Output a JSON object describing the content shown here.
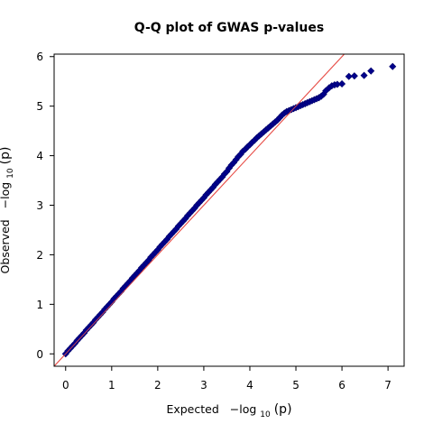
{
  "chart_data": {
    "type": "scatter",
    "title": "Q-Q plot of GWAS p-values",
    "xlabel": {
      "prefix": "Expected",
      "math": "−log",
      "sub": "10",
      "arg": "(p)"
    },
    "ylabel": {
      "prefix": "Observed",
      "math": "−log",
      "sub": "10",
      "arg": "(p)"
    },
    "xlim": [
      -0.25,
      7.35
    ],
    "ylim": [
      -0.25,
      6.05
    ],
    "xticks": [
      0,
      1,
      2,
      3,
      4,
      5,
      6,
      7
    ],
    "yticks": [
      0,
      1,
      2,
      3,
      4,
      5,
      6
    ],
    "grid": false,
    "legend": "none",
    "reference_line": {
      "slope": 1,
      "intercept": 0,
      "color": "#e8504a"
    },
    "marker": {
      "shape": "diamond",
      "fill": "#00008b",
      "stroke": "#00006a"
    },
    "series": [
      {
        "points": [
          [
            0.0,
            0.0
          ],
          [
            0.05,
            0.06
          ],
          [
            0.1,
            0.11
          ],
          [
            0.15,
            0.16
          ],
          [
            0.2,
            0.21
          ],
          [
            0.25,
            0.27
          ],
          [
            0.3,
            0.32
          ],
          [
            0.35,
            0.37
          ],
          [
            0.4,
            0.42
          ],
          [
            0.45,
            0.48
          ],
          [
            0.5,
            0.53
          ],
          [
            0.55,
            0.58
          ],
          [
            0.6,
            0.63
          ],
          [
            0.65,
            0.69
          ],
          [
            0.7,
            0.74
          ],
          [
            0.75,
            0.79
          ],
          [
            0.8,
            0.84
          ],
          [
            0.85,
            0.9
          ],
          [
            0.9,
            0.95
          ],
          [
            0.95,
            1.0
          ],
          [
            1.0,
            1.05
          ],
          [
            1.05,
            1.11
          ],
          [
            1.1,
            1.16
          ],
          [
            1.15,
            1.21
          ],
          [
            1.2,
            1.26
          ],
          [
            1.25,
            1.32
          ],
          [
            1.3,
            1.37
          ],
          [
            1.35,
            1.42
          ],
          [
            1.4,
            1.47
          ],
          [
            1.45,
            1.53
          ],
          [
            1.5,
            1.58
          ],
          [
            1.55,
            1.63
          ],
          [
            1.6,
            1.68
          ],
          [
            1.65,
            1.74
          ],
          [
            1.7,
            1.79
          ],
          [
            1.75,
            1.84
          ],
          [
            1.8,
            1.89
          ],
          [
            1.85,
            1.95
          ],
          [
            1.9,
            2.0
          ],
          [
            1.95,
            2.05
          ],
          [
            2.0,
            2.1
          ],
          [
            2.05,
            2.16
          ],
          [
            2.1,
            2.21
          ],
          [
            2.15,
            2.26
          ],
          [
            2.2,
            2.31
          ],
          [
            2.25,
            2.37
          ],
          [
            2.3,
            2.42
          ],
          [
            2.35,
            2.47
          ],
          [
            2.4,
            2.52
          ],
          [
            2.45,
            2.58
          ],
          [
            2.5,
            2.63
          ],
          [
            2.55,
            2.68
          ],
          [
            2.6,
            2.73
          ],
          [
            2.65,
            2.79
          ],
          [
            2.7,
            2.84
          ],
          [
            2.75,
            2.89
          ],
          [
            2.8,
            2.94
          ],
          [
            2.85,
            3.0
          ],
          [
            2.9,
            3.05
          ],
          [
            2.95,
            3.1
          ],
          [
            3.0,
            3.15
          ],
          [
            3.05,
            3.21
          ],
          [
            3.1,
            3.26
          ],
          [
            3.15,
            3.31
          ],
          [
            3.2,
            3.36
          ],
          [
            3.25,
            3.42
          ],
          [
            3.3,
            3.47
          ],
          [
            3.35,
            3.52
          ],
          [
            3.4,
            3.57
          ],
          [
            3.45,
            3.63
          ],
          [
            3.5,
            3.68
          ],
          [
            3.55,
            3.75
          ],
          [
            3.6,
            3.81
          ],
          [
            3.65,
            3.86
          ],
          [
            3.7,
            3.92
          ],
          [
            3.75,
            3.98
          ],
          [
            3.8,
            4.03
          ],
          [
            3.85,
            4.09
          ],
          [
            3.9,
            4.13
          ],
          [
            3.95,
            4.18
          ],
          [
            4.0,
            4.22
          ],
          [
            4.05,
            4.27
          ],
          [
            4.1,
            4.31
          ],
          [
            4.15,
            4.36
          ],
          [
            4.2,
            4.4
          ],
          [
            4.25,
            4.44
          ],
          [
            4.3,
            4.48
          ],
          [
            4.35,
            4.52
          ],
          [
            4.4,
            4.56
          ],
          [
            4.45,
            4.6
          ],
          [
            4.5,
            4.64
          ],
          [
            4.55,
            4.68
          ],
          [
            4.6,
            4.72
          ],
          [
            4.65,
            4.77
          ],
          [
            4.7,
            4.82
          ],
          [
            4.75,
            4.86
          ],
          [
            4.8,
            4.89
          ],
          [
            4.85,
            4.91
          ],
          [
            4.9,
            4.93
          ],
          [
            4.95,
            4.95
          ],
          [
            5.0,
            4.97
          ],
          [
            5.05,
            4.99
          ],
          [
            5.1,
            5.01
          ],
          [
            5.15,
            5.03
          ],
          [
            5.2,
            5.05
          ],
          [
            5.25,
            5.07
          ],
          [
            5.3,
            5.09
          ],
          [
            5.35,
            5.11
          ],
          [
            5.4,
            5.13
          ],
          [
            5.45,
            5.15
          ],
          [
            5.5,
            5.17
          ],
          [
            5.55,
            5.2
          ],
          [
            5.6,
            5.24
          ],
          [
            5.65,
            5.31
          ],
          [
            5.72,
            5.37
          ],
          [
            5.78,
            5.41
          ],
          [
            5.84,
            5.43
          ],
          [
            5.9,
            5.44
          ],
          [
            6.0,
            5.45
          ],
          [
            6.15,
            5.6
          ],
          [
            6.27,
            5.61
          ],
          [
            6.48,
            5.62
          ],
          [
            6.63,
            5.71
          ],
          [
            7.1,
            5.8
          ]
        ]
      }
    ]
  }
}
